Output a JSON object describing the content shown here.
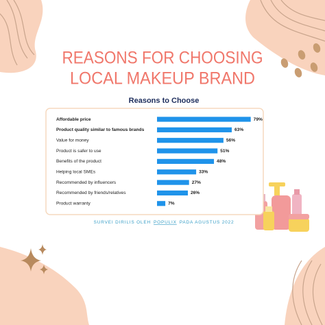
{
  "chart_data": {
    "type": "bar",
    "orientation": "horizontal",
    "title": [
      "REASONS FOR CHOOSING",
      "LOCAL MAKEUP BRAND"
    ],
    "subtitle": "Reasons to Choose",
    "categories": [
      "Affordable price",
      "Product quality similar to famous brands",
      "Value for money",
      "Product is safer to use",
      "Benefits of the product",
      "Helping local SMEs",
      "Recommended by influencers",
      "Recommended by friends/relatives",
      "Product warranty"
    ],
    "values": [
      79,
      63,
      56,
      51,
      48,
      33,
      27,
      26,
      7
    ],
    "value_labels": [
      "79%",
      "63%",
      "56%",
      "51%",
      "48%",
      "33%",
      "27%",
      "26%",
      "7%"
    ],
    "color": "#1f93ea",
    "source": [
      "SURVEI DIRILIS OLEH",
      "POPULIX",
      "PADA AGUSTUS 2022"
    ]
  }
}
